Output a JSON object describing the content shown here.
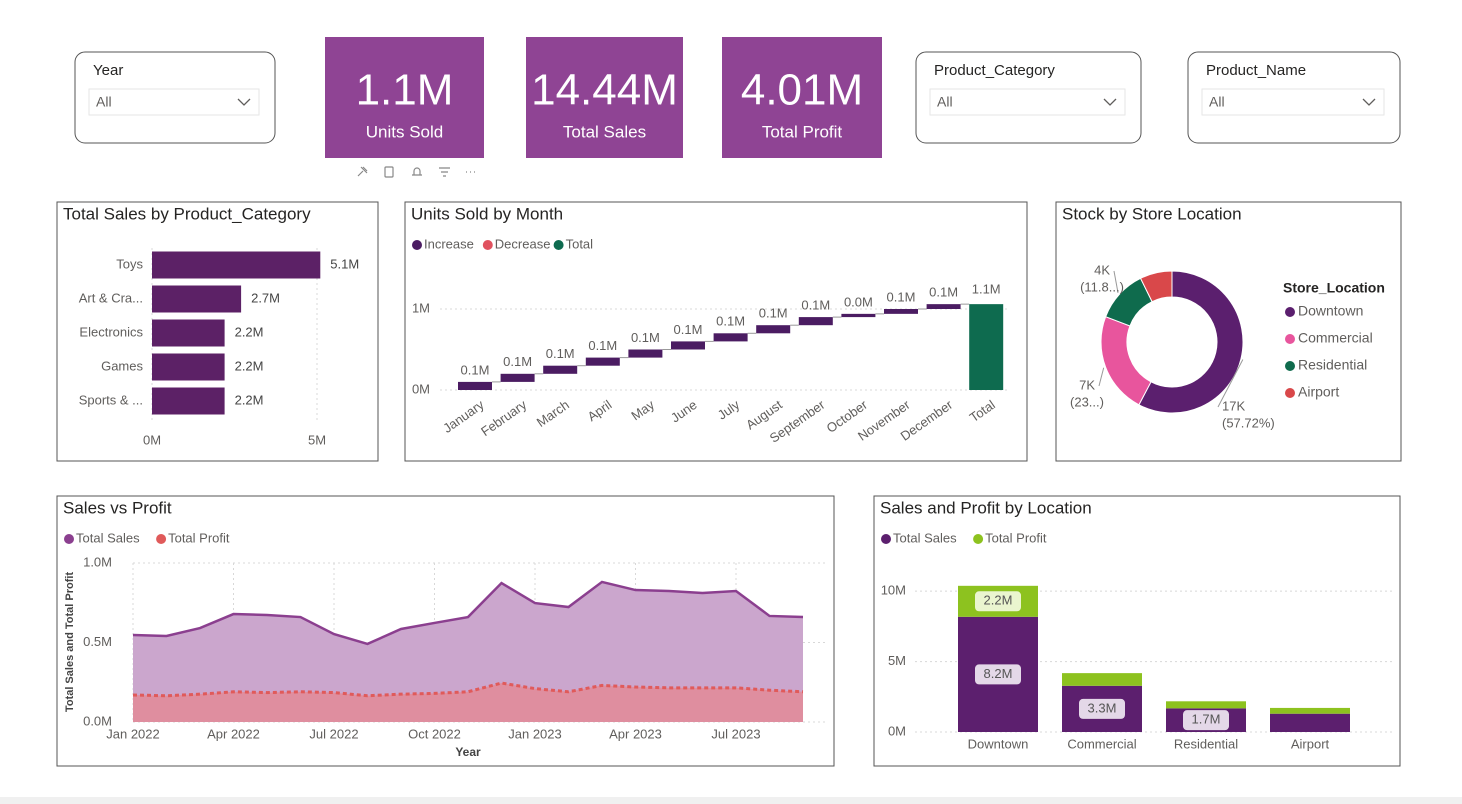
{
  "slicers": [
    {
      "label": "Year",
      "value": "All"
    },
    {
      "label": "Product_Category",
      "value": "All"
    },
    {
      "label": "Product_Name",
      "value": "All"
    }
  ],
  "cards": [
    {
      "value": "1.1M",
      "label": "Units Sold"
    },
    {
      "value": "14.44M",
      "label": "Total Sales"
    },
    {
      "value": "4.01M",
      "label": "Total Profit"
    }
  ],
  "chart_data": [
    {
      "type": "hbar",
      "title": "Total Sales by Product_Category",
      "categories": [
        "Toys",
        "Art & Cra...",
        "Electronics",
        "Games",
        "Sports & ..."
      ],
      "values": [
        5100000,
        2700000,
        2200000,
        2200000,
        2200000
      ],
      "value_labels": [
        "5.1M",
        "2.7M",
        "2.2M",
        "2.2M",
        "2.2M"
      ],
      "color": "#5c2166",
      "xlim": [
        0,
        6000000
      ],
      "xticks": [
        {
          "value": 0,
          "label": "0M"
        },
        {
          "value": 5000000,
          "label": "5M"
        }
      ],
      "grid": true
    },
    {
      "type": "waterfall",
      "title": "Units Sold by Month",
      "legend": [
        {
          "name": "Increase",
          "color": "#4b1c62"
        },
        {
          "name": "Decrease",
          "color": "#e0525f"
        },
        {
          "name": "Total",
          "color": "#0e6b4f"
        }
      ],
      "categories": [
        "January",
        "February",
        "March",
        "April",
        "May",
        "June",
        "July",
        "August",
        "September",
        "October",
        "November",
        "December"
      ],
      "values": [
        100000,
        100000,
        100000,
        100000,
        100000,
        100000,
        100000,
        100000,
        100000,
        40000,
        60000,
        60000
      ],
      "value_labels": [
        "0.1M",
        "0.1M",
        "0.1M",
        "0.1M",
        "0.1M",
        "0.1M",
        "0.1M",
        "0.1M",
        "0.1M",
        "0.0M",
        "0.1M",
        "0.1M"
      ],
      "total": {
        "category": "Total",
        "value": 1060000,
        "value_label": "1.1M"
      },
      "ylim": [
        0,
        1400000
      ],
      "yticks": [
        {
          "value": 0,
          "label": "0M"
        },
        {
          "value": 1000000,
          "label": "1M"
        }
      ],
      "grid": true
    },
    {
      "type": "donut",
      "title": "Stock by Store Location",
      "legend_title": "Store_Location",
      "categories": [
        "Downtown",
        "Commercial",
        "Residential",
        "Airport"
      ],
      "values": [
        17000,
        6800,
        3502,
        2150
      ],
      "value_labels": [
        "17K",
        "7K",
        "4K",
        null
      ],
      "percent_labels": [
        "(57.72%)",
        "(23...)",
        "(11.8...)",
        null
      ],
      "colors": [
        "#5b1f6e",
        "#e8559d",
        "#0f6b4d",
        "#d9484a"
      ]
    },
    {
      "type": "area",
      "title": "Sales vs Profit",
      "x_label": "Year",
      "y_label": "Total Sales and Total Profit",
      "x": [
        "2022-01",
        "2022-02",
        "2022-03",
        "2022-04",
        "2022-05",
        "2022-06",
        "2022-07",
        "2022-08",
        "2022-09",
        "2022-10",
        "2022-11",
        "2022-12",
        "2023-01",
        "2023-02",
        "2023-03",
        "2023-04",
        "2023-05",
        "2023-06",
        "2023-07",
        "2023-08",
        "2023-09"
      ],
      "series": [
        {
          "name": "Total Sales",
          "color": "#8b3f8f",
          "fill": "#cba6cd",
          "values": [
            547000,
            541000,
            591000,
            679000,
            673000,
            660000,
            553000,
            491000,
            585000,
            623000,
            660000,
            874000,
            748000,
            723000,
            881000,
            830000,
            824000,
            811000,
            824000,
            667000,
            660000
          ]
        },
        {
          "name": "Total Profit",
          "color": "#e05a5a",
          "fill": "#e38a97",
          "values": [
            170000,
            165000,
            175000,
            190000,
            185000,
            190000,
            185000,
            165000,
            175000,
            180000,
            190000,
            245000,
            210000,
            190000,
            230000,
            220000,
            215000,
            215000,
            215000,
            200000,
            190000
          ]
        }
      ],
      "xlim": [
        "2022-01",
        "2023-09"
      ],
      "xticks": [
        {
          "value": "2022-01",
          "label": "Jan 2022"
        },
        {
          "value": "2022-04",
          "label": "Apr 2022"
        },
        {
          "value": "2022-07",
          "label": "Jul 2022"
        },
        {
          "value": "2022-10",
          "label": "Oct 2022"
        },
        {
          "value": "2023-01",
          "label": "Jan 2023"
        },
        {
          "value": "2023-04",
          "label": "Apr 2023"
        },
        {
          "value": "2023-07",
          "label": "Jul 2023"
        }
      ],
      "ylim": [
        0,
        1000000
      ],
      "yticks": [
        {
          "value": 0,
          "label": "0.0M"
        },
        {
          "value": 500000,
          "label": "0.5M"
        },
        {
          "value": 1000000,
          "label": "1.0M"
        }
      ],
      "grid": true
    },
    {
      "type": "stacked_bar",
      "title": "Sales and Profit by Location",
      "categories": [
        "Downtown",
        "Commercial",
        "Residential",
        "Airport"
      ],
      "series": [
        {
          "name": "Total Sales",
          "color": "#5c1f6e",
          "label_box": "#e4d8e8",
          "values": [
            8180000,
            3280000,
            1680000,
            1300000
          ],
          "value_labels": [
            "8.2M",
            "3.3M",
            "1.7M",
            null
          ]
        },
        {
          "name": "Total Profit",
          "color": "#8dc21f",
          "label_box": "#eaf5cf",
          "values": [
            2200000,
            900000,
            500000,
            410000
          ],
          "value_labels": [
            "2.2M",
            null,
            null,
            null
          ]
        }
      ],
      "ylim": [
        0,
        12000000
      ],
      "yticks": [
        {
          "value": 0,
          "label": "0M"
        },
        {
          "value": 5000000,
          "label": "5M"
        },
        {
          "value": 10000000,
          "label": "10M"
        }
      ],
      "grid": true
    }
  ]
}
